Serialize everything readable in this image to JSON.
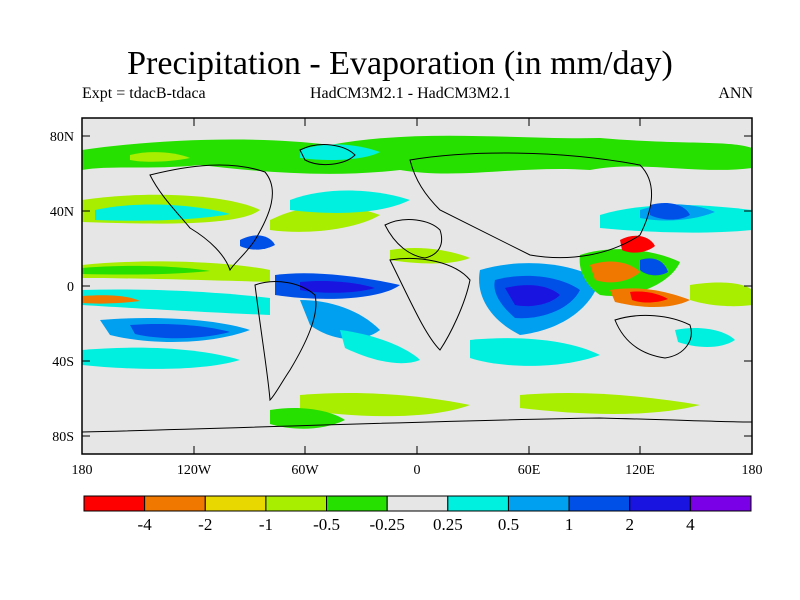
{
  "title": "Precipitation - Evaporation (in mm/day)",
  "subtitle_left": "Expt = tdacB-tdaca",
  "subtitle_center": "HadCM3M2.1 - HadCM3M2.1",
  "subtitle_right": "ANN",
  "lat_ticks": [
    "80N",
    "40N",
    "0",
    "40S",
    "80S"
  ],
  "lon_ticks": [
    "180",
    "120W",
    "60W",
    "0",
    "60E",
    "120E",
    "180"
  ],
  "colorbar": {
    "colors": [
      "#ff0000",
      "#f07800",
      "#e8d800",
      "#a8ee00",
      "#26e000",
      "#e6e6e6",
      "#00f0e0",
      "#00a0f0",
      "#0050e8",
      "#1a14e0",
      "#7a00e8"
    ],
    "labels": [
      "-4",
      "-2",
      "-1",
      "-0.5",
      "-0.25",
      "0.25",
      "0.5",
      "1",
      "2",
      "4"
    ]
  },
  "colors": {
    "ocean_background": "#e6e6e6",
    "frame": "#000000"
  }
}
